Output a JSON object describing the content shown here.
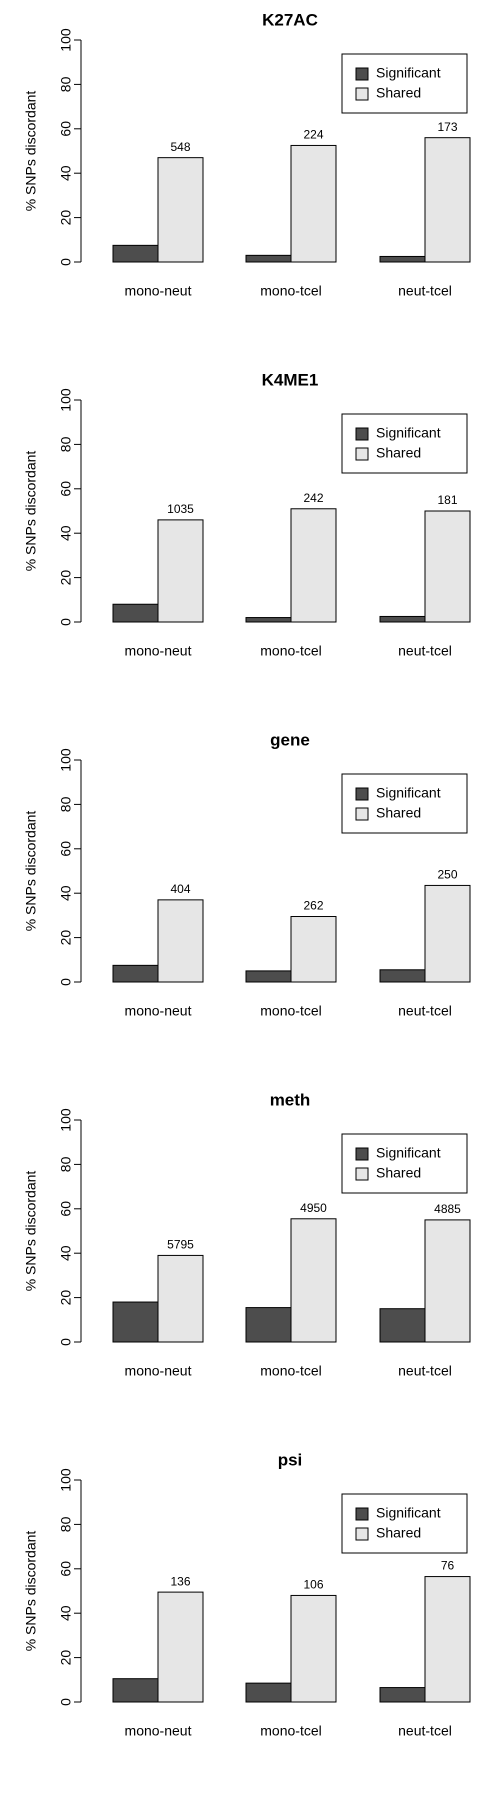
{
  "chart_data": [
    {
      "type": "bar",
      "title": "K27AC",
      "ylabel": "% SNPs discordant",
      "categories": [
        "mono-neut",
        "mono-tcel",
        "neut-tcel"
      ],
      "series": [
        {
          "name": "Significant",
          "color": "#4d4d4d",
          "values": [
            7.5,
            3,
            2.5
          ]
        },
        {
          "name": "Shared",
          "color": "#e6e6e6",
          "values": [
            47,
            52.5,
            56
          ]
        }
      ],
      "bar_labels": [
        548,
        224,
        173
      ],
      "ylim": [
        0,
        100
      ],
      "yticks": [
        0,
        20,
        40,
        60,
        80,
        100
      ],
      "legend": "topright"
    },
    {
      "type": "bar",
      "title": "K4ME1",
      "ylabel": "% SNPs discordant",
      "categories": [
        "mono-neut",
        "mono-tcel",
        "neut-tcel"
      ],
      "series": [
        {
          "name": "Significant",
          "color": "#4d4d4d",
          "values": [
            8,
            2,
            2.5
          ]
        },
        {
          "name": "Shared",
          "color": "#e6e6e6",
          "values": [
            46,
            51,
            50
          ]
        }
      ],
      "bar_labels": [
        1035,
        242,
        181
      ],
      "ylim": [
        0,
        100
      ],
      "yticks": [
        0,
        20,
        40,
        60,
        80,
        100
      ],
      "legend": "topright"
    },
    {
      "type": "bar",
      "title": "gene",
      "ylabel": "% SNPs discordant",
      "categories": [
        "mono-neut",
        "mono-tcel",
        "neut-tcel"
      ],
      "series": [
        {
          "name": "Significant",
          "color": "#4d4d4d",
          "values": [
            7.5,
            5,
            5.5
          ]
        },
        {
          "name": "Shared",
          "color": "#e6e6e6",
          "values": [
            37,
            29.5,
            43.5
          ]
        }
      ],
      "bar_labels": [
        404,
        262,
        250
      ],
      "ylim": [
        0,
        100
      ],
      "yticks": [
        0,
        20,
        40,
        60,
        80,
        100
      ],
      "legend": "topright"
    },
    {
      "type": "bar",
      "title": "meth",
      "ylabel": "% SNPs discordant",
      "categories": [
        "mono-neut",
        "mono-tcel",
        "neut-tcel"
      ],
      "series": [
        {
          "name": "Significant",
          "color": "#4d4d4d",
          "values": [
            18,
            15.5,
            15
          ]
        },
        {
          "name": "Shared",
          "color": "#e6e6e6",
          "values": [
            39,
            55.5,
            55
          ]
        }
      ],
      "bar_labels": [
        5795,
        4950,
        4885
      ],
      "ylim": [
        0,
        100
      ],
      "yticks": [
        0,
        20,
        40,
        60,
        80,
        100
      ],
      "legend": "topright"
    },
    {
      "type": "bar",
      "title": "psi",
      "ylabel": "% SNPs discordant",
      "categories": [
        "mono-neut",
        "mono-tcel",
        "neut-tcel"
      ],
      "series": [
        {
          "name": "Significant",
          "color": "#4d4d4d",
          "values": [
            10.5,
            8.5,
            6.5
          ]
        },
        {
          "name": "Shared",
          "color": "#e6e6e6",
          "values": [
            49.5,
            48,
            56.5
          ]
        }
      ],
      "bar_labels": [
        136,
        106,
        76
      ],
      "ylim": [
        0,
        100
      ],
      "yticks": [
        0,
        20,
        40,
        60,
        80,
        100
      ],
      "legend": "topright"
    }
  ]
}
